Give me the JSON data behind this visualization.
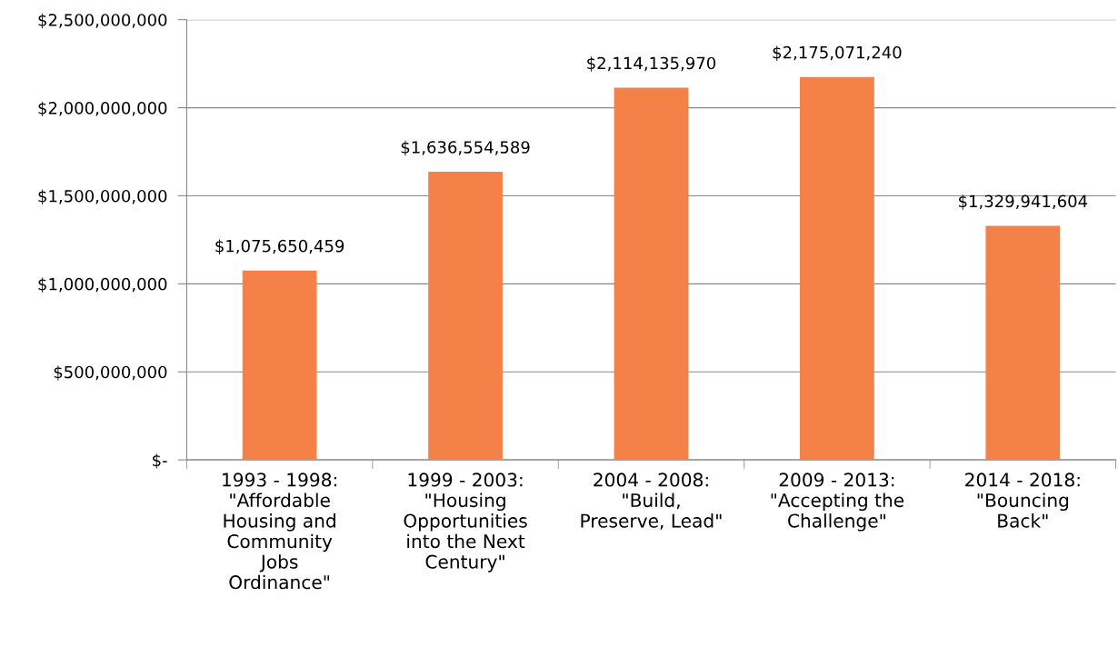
{
  "chart_data": {
    "type": "bar",
    "categories": [
      "1993 - 1998:\n\"Affordable\nHousing and\nCommunity\nJobs\nOrdinance\"",
      "1999 - 2003:\n\"Housing\nOpportunities\ninto the Next\nCentury\"",
      "2004 - 2008:\n\"Build,\nPreserve, Lead\"",
      "2009 - 2013:\n\"Accepting the\nChallenge\"",
      "2014 - 2018:\n\"Bouncing\nBack\""
    ],
    "values": [
      1075650459,
      1636554589,
      2114135970,
      2175071240,
      1329941604
    ],
    "value_labels": [
      "$1,075,650,459",
      "$1,636,554,589",
      "$2,114,135,970",
      "$2,175,071,240",
      "$1,329,941,604"
    ],
    "color": "#f48147",
    "ylim": [
      0,
      2500000000
    ],
    "yticks": [
      {
        "value": 0,
        "label": "$-"
      },
      {
        "value": 500000000,
        "label": "$500,000,000"
      },
      {
        "value": 1000000000,
        "label": "$1,000,000,000"
      },
      {
        "value": 1500000000,
        "label": "$1,500,000,000"
      },
      {
        "value": 2000000000,
        "label": "$2,000,000,000"
      },
      {
        "value": 2500000000,
        "label": "$2,500,000,000"
      }
    ],
    "grid": "y",
    "legend": false
  }
}
